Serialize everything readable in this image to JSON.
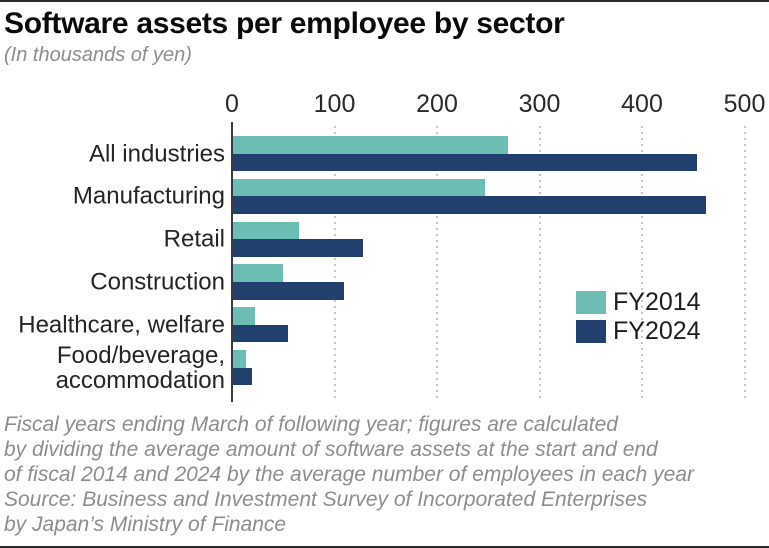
{
  "header": {
    "title": "Software assets per employee by sector",
    "subtitle": "(In thousands of yen)"
  },
  "chart_data": {
    "type": "bar",
    "orientation": "horizontal",
    "title": "Software assets per employee by sector",
    "subtitle": "(In thousands of yen)",
    "unit": "thousands of yen",
    "categories": [
      "All industries",
      "Manufacturing",
      "Retail",
      "Construction",
      "Healthcare, welfare",
      "Food/beverage,\naccommodation"
    ],
    "series": [
      {
        "name": "FY2014",
        "color": "#6cbdb3",
        "values": [
          268,
          246,
          64,
          49,
          21,
          13
        ]
      },
      {
        "name": "FY2024",
        "color": "#21406e",
        "values": [
          453,
          461,
          127,
          108,
          54,
          19
        ]
      }
    ],
    "xlim": [
      0,
      500
    ],
    "x_ticks": [
      0,
      100,
      200,
      300,
      400,
      500
    ],
    "grid": "vertical-dotted",
    "legend_position": "middle-right"
  },
  "legend": {
    "fy2014_label": "FY2014",
    "fy2024_label": "FY2024"
  },
  "footnote": {
    "lines": [
      "Fiscal years ending March of following year; figures are calculated",
      "by dividing the average amount of software assets at the start and end",
      "of fiscal 2014 and 2024 by the average number of employees in each year",
      "Source: Business and Investment Survey of Incorporated Enterprises",
      "by Japan’s Ministry of Finance"
    ]
  },
  "colors": {
    "fy2014": "#6cbdb3",
    "fy2024": "#21406e",
    "grid": "#c6c6c6",
    "axis": "#3a3a3a",
    "rule": "#2b2b2b",
    "muted_text": "#8d8d8d"
  }
}
